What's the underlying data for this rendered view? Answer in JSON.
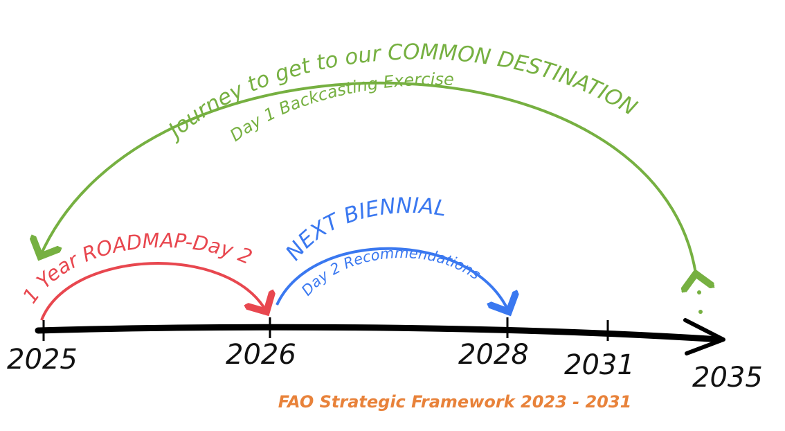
{
  "arcs": {
    "journey": {
      "title": "Journey to get to our COMMON DESTINATION",
      "subtitle": "Day 1 Backcasting Exercise"
    },
    "roadmap": {
      "title": "1 Year ROADMAP-Day 2"
    },
    "biennial": {
      "title": "NEXT BIENNIAL",
      "subtitle": "Day 2 Recommendations"
    }
  },
  "timeline": {
    "labels": [
      "2025",
      "2026",
      "2028",
      "2031",
      "2035"
    ]
  },
  "footer": {
    "text": "FAO Strategic Framework 2023 - 2031"
  }
}
